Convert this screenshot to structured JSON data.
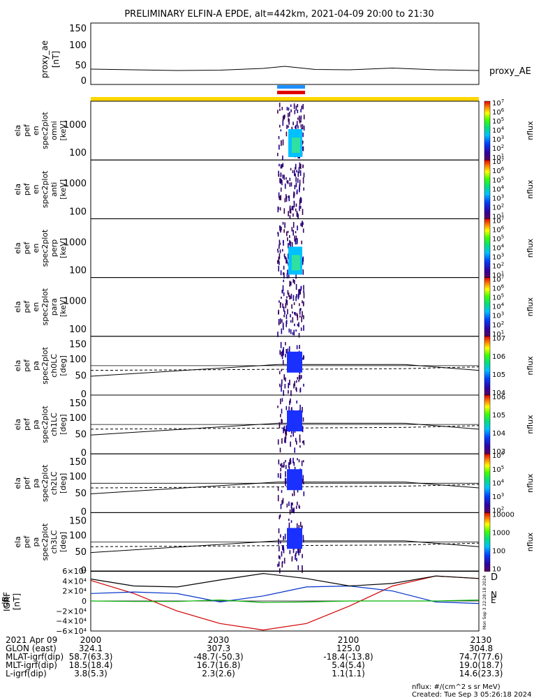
{
  "title": "PRELIMINARY ELFIN-A EPDE, alt=442km, 2021-04-09 20:00 to 21:30",
  "time_axis": {
    "start": "2021-04-09 20:00",
    "end": "2021-04-09 21:30"
  },
  "chart_data": [
    {
      "type": "line",
      "panel": "proxy_ae",
      "ylabel": [
        "proxy_ae",
        "[nT]"
      ],
      "yticks": [
        "0",
        "50",
        "100",
        "150"
      ],
      "ylim": [
        0,
        160
      ],
      "series_label": "proxy_AE",
      "x_min": [
        0,
        10,
        20,
        30,
        40,
        45,
        52,
        60,
        70,
        80,
        90
      ],
      "values": [
        28,
        26,
        24,
        25,
        30,
        36,
        27,
        26,
        31,
        26,
        24
      ]
    },
    {
      "type": "heatmap",
      "panel": "ela_pef_en_spec2plot_omni",
      "ylabel": [
        "ela",
        "pef",
        "en",
        "spec2plot",
        "omni",
        "[keV]"
      ],
      "yticks": [
        "100",
        "1000"
      ],
      "colorbar": {
        "label": "nflux",
        "ticks": [
          "101",
          "102",
          "103",
          "104",
          "105",
          "106",
          "107"
        ]
      }
    },
    {
      "type": "heatmap",
      "panel": "ela_pef_en_spec2plot_anti",
      "ylabel": [
        "ela",
        "pef",
        "en",
        "spec2plot",
        "anti",
        "[keV]"
      ],
      "yticks": [
        "100",
        "1000"
      ],
      "colorbar": {
        "label": "nflux",
        "ticks": [
          "101",
          "102",
          "103",
          "104",
          "105",
          "106",
          "107"
        ]
      }
    },
    {
      "type": "heatmap",
      "panel": "ela_pef_en_spec2plot_perp",
      "ylabel": [
        "ela",
        "pef",
        "en",
        "spec2plot",
        "perp",
        "[keV]"
      ],
      "yticks": [
        "100",
        "1000"
      ],
      "colorbar": {
        "label": "nflux",
        "ticks": [
          "101",
          "102",
          "103",
          "104",
          "105",
          "106",
          "107"
        ]
      }
    },
    {
      "type": "heatmap",
      "panel": "ela_pef_en_spec2plot_para",
      "ylabel": [
        "ela",
        "pef",
        "en",
        "spec2plot",
        "para",
        "[keV]"
      ],
      "yticks": [
        "100",
        "1000"
      ],
      "colorbar": {
        "label": "nflux",
        "ticks": [
          "101",
          "102",
          "103",
          "104",
          "105",
          "106",
          "107"
        ]
      }
    },
    {
      "type": "heatmap",
      "panel": "ela_pef_pa_spec2plot_ch0LC",
      "ylabel": [
        "ela",
        "pef",
        "pa",
        "spec2plot",
        "ch0LC",
        "[deg]"
      ],
      "yticks": [
        "0",
        "50",
        "100",
        "150"
      ],
      "colorbar": {
        "label": "nflux",
        "ticks": [
          "104",
          "105",
          "106",
          "107"
        ]
      }
    },
    {
      "type": "heatmap",
      "panel": "ela_pef_pa_spec2plot_ch1LC",
      "ylabel": [
        "ela",
        "pef",
        "pa",
        "spec2plot",
        "ch1LC",
        "[deg]"
      ],
      "yticks": [
        "0",
        "50",
        "100",
        "150"
      ],
      "colorbar": {
        "label": "nflux",
        "ticks": [
          "103",
          "104",
          "105",
          "106"
        ]
      }
    },
    {
      "type": "heatmap",
      "panel": "ela_pef_pa_spec2plot_ch2LC",
      "ylabel": [
        "ela",
        "pef",
        "pa",
        "spec2plot",
        "ch2LC",
        "[deg]"
      ],
      "yticks": [
        "0",
        "50",
        "100",
        "150"
      ],
      "colorbar": {
        "label": "nflux",
        "ticks": [
          "102",
          "103",
          "104",
          "105",
          "106"
        ]
      }
    },
    {
      "type": "heatmap",
      "panel": "ela_pef_pa_spec2plot_ch3LC",
      "ylabel": [
        "ela",
        "pef",
        "pa",
        "spec2plot",
        "ch3LC",
        "[deg]"
      ],
      "yticks": [
        "0",
        "50",
        "100",
        "150"
      ],
      "colorbar": {
        "label": "nflux",
        "ticks": [
          "10",
          "100",
          "1000",
          "10000"
        ]
      }
    },
    {
      "type": "line",
      "panel": "dB_IGRF",
      "ylabel": [
        "dB",
        "IGRF",
        "[nT]"
      ],
      "yticks": [
        "6×10⁴",
        "4×10⁴",
        "2×10⁴",
        "0",
        "−2×10⁴",
        "−4×10⁴",
        "−6×10⁴"
      ],
      "ylim": [
        -60000,
        60000
      ],
      "legend": [
        "D",
        "N",
        "E"
      ],
      "series": [
        {
          "name": "D",
          "color": "#d10000",
          "x_min": [
            0,
            10,
            20,
            30,
            40,
            50,
            60,
            70,
            80,
            90
          ],
          "values": [
            41000,
            15000,
            -20000,
            -45000,
            -58000,
            -45000,
            -10000,
            30000,
            50000,
            45000
          ]
        },
        {
          "name": "N",
          "color": "#0030c8",
          "x_min": [
            0,
            10,
            20,
            30,
            40,
            50,
            60,
            70,
            80,
            90
          ],
          "values": [
            15000,
            18000,
            15000,
            -2000,
            10000,
            28000,
            30000,
            20000,
            -2000,
            -5000
          ]
        },
        {
          "name": "E",
          "color": "#00b000",
          "x_min": [
            0,
            10,
            20,
            30,
            40,
            50,
            60,
            70,
            80,
            90
          ],
          "values": [
            0,
            -1000,
            -1000,
            2000,
            -3000,
            -2000,
            0,
            0,
            0,
            2000
          ]
        },
        {
          "name": "",
          "color": "#000000",
          "x_min": [
            0,
            10,
            20,
            30,
            40,
            50,
            60,
            70,
            80,
            90
          ],
          "values": [
            44000,
            30000,
            28000,
            42000,
            55000,
            45000,
            30000,
            35000,
            50000,
            45000
          ]
        }
      ],
      "stamp": "Mon Sep 3 22:28:18 2024"
    }
  ],
  "footer": {
    "rows": [
      {
        "label": "2021 Apr 09",
        "values": [
          "2000",
          "2030",
          "2100",
          "2130"
        ]
      },
      {
        "label": "GLON (east)",
        "values": [
          "324.1",
          "307.3",
          "125.0",
          "304.8"
        ]
      },
      {
        "label": "MLAT-igrf(dip)",
        "values": [
          "58.7(63.3)",
          "-48.7(-50.3)",
          "-18.4(-13.8)",
          "74.7(77.6)"
        ]
      },
      {
        "label": "MLT-igrf(dip)",
        "values": [
          "18.5(18.4)",
          "16.7(16.8)",
          "5.4(5.4)",
          "19.0(18.7)"
        ]
      },
      {
        "label": "L-igrf(dip)",
        "values": [
          "3.8(5.3)",
          "2.3(2.6)",
          "1.1(1.1)",
          "14.6(23.3)"
        ]
      }
    ],
    "nflux_units": "nflux: #/(cm^2 s sr MeV)",
    "created": "Created: Tue Sep  3 05:26:18 2024"
  }
}
